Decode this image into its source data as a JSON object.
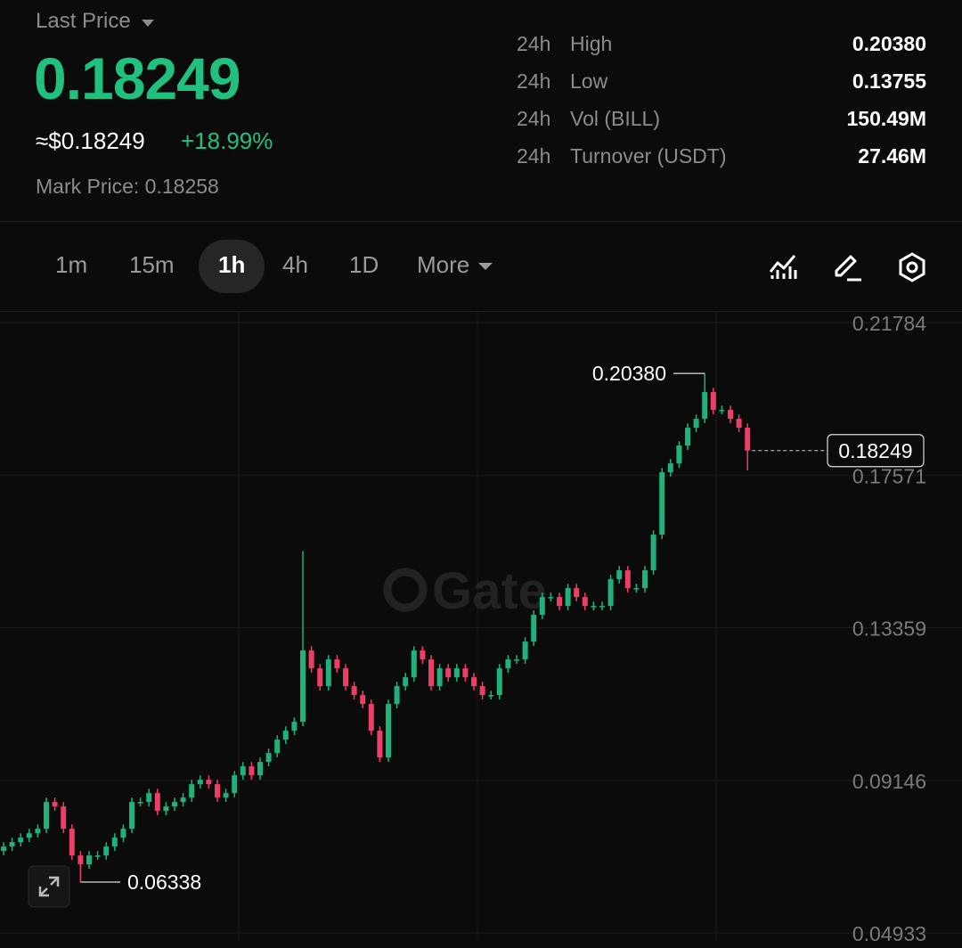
{
  "header": {
    "label": "Last Price",
    "price": "0.18249",
    "usd_price": "≈$0.18249",
    "change": "+18.99%",
    "mark_price": "Mark Price: 0.18258"
  },
  "stats": [
    {
      "period": "24h",
      "name": "High",
      "value": "0.20380"
    },
    {
      "period": "24h",
      "name": "Low",
      "value": "0.13755"
    },
    {
      "period": "24h",
      "name": "Vol (BILL)",
      "value": "150.49M"
    },
    {
      "period": "24h",
      "name": "Turnover (USDT)",
      "value": "27.46M"
    }
  ],
  "intervals": [
    "1m",
    "15m",
    "1h",
    "4h",
    "1D",
    "More"
  ],
  "chart_data": {
    "type": "candlestick",
    "watermark": "Gate",
    "up_color": "#20b27a",
    "down_color": "#ec3f66",
    "ylim": [
      0.0474,
      0.2208
    ],
    "yticks": [
      0.21784,
      0.17571,
      0.13359,
      0.09146,
      0.04933
    ],
    "grid": true,
    "open": [
      0.072,
      0.07319,
      0.07442,
      0.07565,
      0.07688,
      0.07811,
      0.08549,
      0.08426,
      0.07811,
      0.07073,
      0.06827,
      0.07073,
      0.07073,
      0.07319,
      0.07565,
      0.07811,
      0.08549,
      0.08549,
      0.08795,
      0.08303,
      0.08426,
      0.08549,
      0.08672,
      0.09041,
      0.09164,
      0.09041,
      0.08672,
      0.08795,
      0.09287,
      0.09533,
      0.09287,
      0.09656,
      0.09902,
      0.10271,
      0.10517,
      0.10763,
      0.12731,
      0.12239,
      0.11747,
      0.12485,
      0.12239,
      0.11747,
      0.11501,
      0.11255,
      0.10517,
      0.09779,
      0.11255,
      0.11747,
      0.11993,
      0.12731,
      0.12485,
      0.11747,
      0.12239,
      0.11993,
      0.12239,
      0.11993,
      0.11747,
      0.11501,
      0.11501,
      0.12239,
      0.12485,
      0.12485,
      0.12977,
      0.13715,
      0.14207,
      0.14207,
      0.13961,
      0.14453,
      0.14207,
      0.13961,
      0.13961,
      0.13961,
      0.14699,
      0.14945,
      0.14453,
      0.14453,
      0.14945,
      0.15929,
      0.17651,
      0.17897,
      0.18389,
      0.18881,
      0.19127,
      0.19865,
      0.19373,
      0.19373,
      0.19127,
      0.18881
    ],
    "high": [
      0.07439,
      0.07562,
      0.07685,
      0.07808,
      0.07931,
      0.08669,
      0.08669,
      0.08546,
      0.07931,
      0.07193,
      0.07193,
      0.07193,
      0.07439,
      0.07685,
      0.07931,
      0.08669,
      0.08669,
      0.08915,
      0.08915,
      0.08546,
      0.08669,
      0.08792,
      0.09161,
      0.09284,
      0.09284,
      0.09161,
      0.08915,
      0.09407,
      0.09653,
      0.09653,
      0.09776,
      0.10022,
      0.10391,
      0.10637,
      0.10883,
      0.1548,
      0.12851,
      0.12359,
      0.12605,
      0.12605,
      0.12359,
      0.11867,
      0.11621,
      0.11375,
      0.10637,
      0.11375,
      0.11867,
      0.12113,
      0.12851,
      0.12851,
      0.12605,
      0.12359,
      0.12359,
      0.12359,
      0.12359,
      0.12113,
      0.11867,
      0.11621,
      0.12359,
      0.12605,
      0.12605,
      0.13097,
      0.13835,
      0.14327,
      0.14327,
      0.14327,
      0.14573,
      0.14573,
      0.14327,
      0.14081,
      0.14081,
      0.14819,
      0.15065,
      0.15065,
      0.14573,
      0.15065,
      0.16049,
      0.17771,
      0.18017,
      0.18509,
      0.19001,
      0.19247,
      0.2038,
      0.19985,
      0.19493,
      0.19493,
      0.19247,
      0.19001
    ],
    "low": [
      0.0708,
      0.07199,
      0.07322,
      0.07445,
      0.07568,
      0.07691,
      0.08306,
      0.07691,
      0.06953,
      0.06338,
      0.06707,
      0.06953,
      0.06953,
      0.07199,
      0.07445,
      0.07691,
      0.08429,
      0.08429,
      0.08183,
      0.08183,
      0.08306,
      0.08429,
      0.08552,
      0.08921,
      0.08921,
      0.08552,
      0.08552,
      0.08675,
      0.09167,
      0.09167,
      0.09167,
      0.09536,
      0.09782,
      0.10151,
      0.10397,
      0.10643,
      0.12119,
      0.11627,
      0.11627,
      0.12119,
      0.11627,
      0.11381,
      0.11135,
      0.10397,
      0.09659,
      0.09659,
      0.11135,
      0.11627,
      0.11873,
      0.12365,
      0.11627,
      0.11627,
      0.11873,
      0.11873,
      0.11873,
      0.11627,
      0.11381,
      0.11381,
      0.11381,
      0.12119,
      0.12365,
      0.12365,
      0.12857,
      0.13595,
      0.14087,
      0.13841,
      0.13841,
      0.14087,
      0.13841,
      0.13841,
      0.13841,
      0.13841,
      0.14579,
      0.14333,
      0.14333,
      0.14333,
      0.14825,
      0.15809,
      0.17531,
      0.17777,
      0.18269,
      0.18761,
      0.19007,
      0.19253,
      0.19253,
      0.19007,
      0.18761,
      0.177
    ],
    "close": [
      0.07319,
      0.07442,
      0.07565,
      0.07688,
      0.07811,
      0.08549,
      0.08426,
      0.07811,
      0.07073,
      0.06827,
      0.07073,
      0.07073,
      0.07319,
      0.07565,
      0.07811,
      0.08549,
      0.08549,
      0.08795,
      0.08303,
      0.08426,
      0.08549,
      0.08672,
      0.09041,
      0.09164,
      0.09041,
      0.08672,
      0.08795,
      0.09287,
      0.09533,
      0.09287,
      0.09656,
      0.09902,
      0.10271,
      0.10517,
      0.10763,
      0.12731,
      0.12239,
      0.11747,
      0.12485,
      0.12239,
      0.11747,
      0.11501,
      0.11255,
      0.10517,
      0.09779,
      0.11255,
      0.11747,
      0.11993,
      0.12731,
      0.12485,
      0.11747,
      0.12239,
      0.11993,
      0.12239,
      0.11993,
      0.11747,
      0.11501,
      0.11501,
      0.12239,
      0.12485,
      0.12485,
      0.12977,
      0.13715,
      0.14207,
      0.14207,
      0.13961,
      0.14453,
      0.14207,
      0.13961,
      0.13961,
      0.13961,
      0.14699,
      0.14945,
      0.14453,
      0.14453,
      0.14945,
      0.15929,
      0.17651,
      0.17897,
      0.18389,
      0.18881,
      0.19127,
      0.19865,
      0.19373,
      0.19373,
      0.19127,
      0.18881,
      0.18249
    ],
    "annotations": {
      "high": {
        "value": 0.2038,
        "label": "0.20380"
      },
      "low": {
        "value": 0.06338,
        "label": "0.06338"
      },
      "last": {
        "value": 0.18249,
        "label": "0.18249"
      }
    }
  }
}
